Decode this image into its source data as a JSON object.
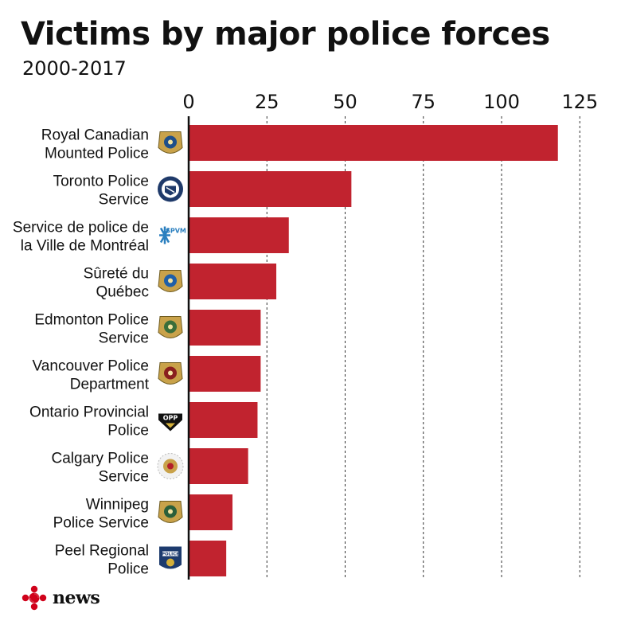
{
  "header": {
    "title": "Victims by major police forces",
    "subtitle": "2000-2017"
  },
  "footer": {
    "brand": "news"
  },
  "colors": {
    "bar": "#c1232f",
    "axis": "#111111",
    "grid": "#333333"
  },
  "chart_data": {
    "type": "bar",
    "orientation": "horizontal",
    "title": "Victims by major police forces",
    "subtitle": "2000-2017",
    "xlim": [
      0,
      125
    ],
    "x_ticks": [
      0,
      25,
      50,
      75,
      100,
      125
    ],
    "x_tick_position": "top",
    "grid": "vertical dashed",
    "categories": [
      [
        "Royal Canadian",
        "Mounted Police"
      ],
      [
        "Toronto Police",
        "Service"
      ],
      [
        "Service de police de",
        "la Ville de Montréal"
      ],
      [
        "Sûreté du",
        "Québec"
      ],
      [
        "Edmonton Police",
        "Service"
      ],
      [
        "Vancouver Police",
        "Department"
      ],
      [
        "Ontario Provincial",
        "Police"
      ],
      [
        "Calgary Police",
        "Service"
      ],
      [
        "Winnipeg",
        "Police Service"
      ],
      [
        "Peel Regional",
        "Police"
      ]
    ],
    "values": [
      118,
      52,
      32,
      28,
      23,
      23,
      22,
      19,
      14,
      12
    ],
    "logos": [
      "rcmp-badge-icon",
      "toronto-police-badge-icon",
      "spvm-logo-icon",
      "surete-quebec-badge-icon",
      "edmonton-police-badge-icon",
      "vancouver-police-badge-icon",
      "opp-badge-icon",
      "calgary-police-badge-icon",
      "winnipeg-police-badge-icon",
      "peel-police-badge-icon"
    ],
    "logo_text": {
      "spvm": "SPVM",
      "opp": "OPP",
      "peel": "POLICE"
    }
  }
}
